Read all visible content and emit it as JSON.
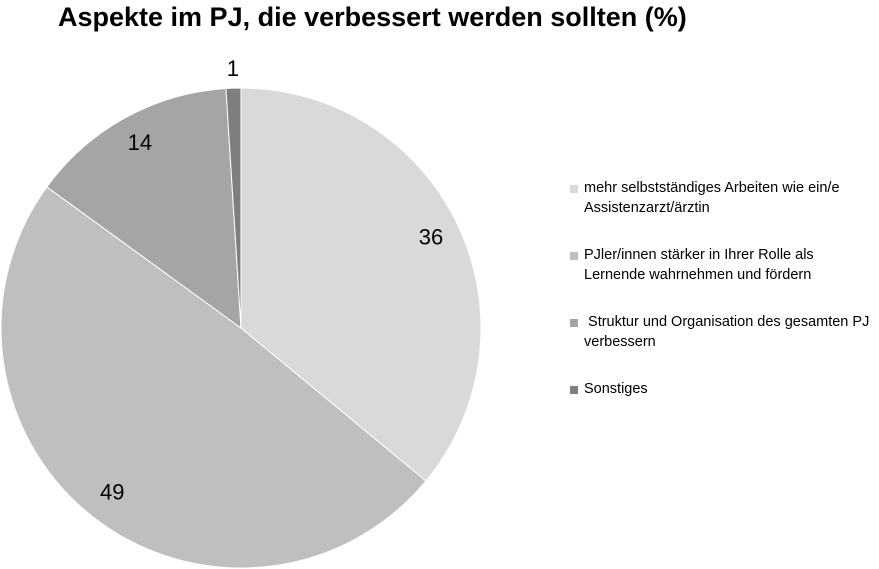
{
  "chart_data": {
    "type": "pie",
    "title": "Aspekte im PJ, die verbessert werden sollten (%)",
    "categories": [
      "mehr selbstständiges Arbeiten wie ein/e Assistenzarzt/ärztin",
      "PJler/innen stärker in Ihrer Rolle als Lernende wahrnehmen und fördern",
      " Struktur und Organisation des gesamten PJ verbessern",
      "Sonstiges"
    ],
    "values": [
      36,
      49,
      14,
      1
    ],
    "colors": [
      "#d9d9d9",
      "#bfbfbf",
      "#a5a5a5",
      "#7f7f7f"
    ]
  }
}
